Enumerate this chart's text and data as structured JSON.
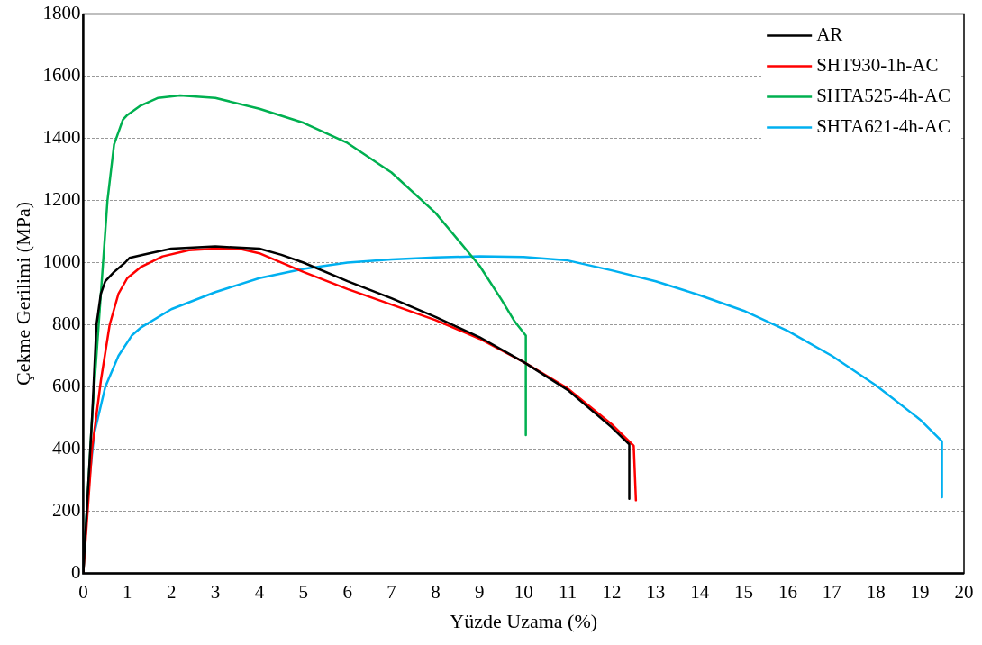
{
  "chart_data": {
    "type": "line",
    "xlabel": "Yüzde Uzama (%)",
    "ylabel": "Çekme Gerilimi (MPa)",
    "xlim": [
      0,
      20
    ],
    "xticks": [
      0,
      1,
      2,
      3,
      4,
      5,
      6,
      7,
      8,
      9,
      10,
      11,
      12,
      13,
      14,
      15,
      16,
      17,
      18,
      19,
      20
    ],
    "ylim": [
      0,
      1800
    ],
    "yticks": [
      0,
      200,
      400,
      600,
      800,
      1000,
      1200,
      1400,
      1600,
      1800
    ],
    "grid": "y",
    "legend": "top right",
    "marker": "none",
    "line_style": "solid",
    "series": [
      {
        "name": "AR",
        "color": "#000000",
        "x": [
          0,
          0.2,
          0.3,
          0.4,
          0.5,
          0.7,
          0.95,
          1.05,
          1.5,
          2,
          3,
          4,
          4.5,
          5,
          6,
          7,
          8,
          9,
          10,
          11,
          11.5,
          12,
          12.4,
          12.4
        ],
        "values": [
          0,
          500,
          800,
          900,
          940,
          970,
          1000,
          1015,
          1030,
          1045,
          1052,
          1045,
          1025,
          1000,
          940,
          885,
          825,
          760,
          680,
          590,
          530,
          470,
          415,
          240
        ]
      },
      {
        "name": "SHT930-1h-AC",
        "color": "#ff0000",
        "x": [
          0,
          0.2,
          0.4,
          0.6,
          0.8,
          1,
          1.3,
          1.8,
          2.4,
          3,
          3.6,
          4,
          5,
          6,
          7,
          8,
          9,
          10,
          11,
          12,
          12.5,
          12.55
        ],
        "values": [
          0,
          400,
          620,
          800,
          900,
          950,
          985,
          1020,
          1040,
          1045,
          1043,
          1030,
          970,
          915,
          865,
          815,
          755,
          680,
          595,
          480,
          410,
          235
        ]
      },
      {
        "name": "SHTA525-4h-AC",
        "color": "#00b050",
        "x": [
          0,
          0.2,
          0.4,
          0.55,
          0.7,
          0.9,
          1,
          1.3,
          1.7,
          2.2,
          3,
          4,
          5,
          6,
          7,
          8,
          9,
          9.5,
          9.8,
          10.05,
          10.05
        ],
        "values": [
          0,
          500,
          900,
          1200,
          1380,
          1460,
          1475,
          1505,
          1530,
          1538,
          1530,
          1495,
          1450,
          1385,
          1290,
          1160,
          990,
          880,
          810,
          765,
          445
        ]
      },
      {
        "name": "SHTA621-4h-AC",
        "color": "#00b0f0",
        "x": [
          0,
          0.1,
          0.25,
          0.5,
          0.8,
          1.1,
          1.3,
          2,
          3,
          4,
          5,
          6,
          7,
          8,
          9,
          10,
          11,
          12,
          13,
          14,
          15,
          16,
          17,
          18,
          19,
          19.5,
          19.5
        ],
        "values": [
          0,
          250,
          450,
          600,
          700,
          765,
          790,
          850,
          905,
          950,
          980,
          1000,
          1010,
          1017,
          1020,
          1018,
          1007,
          975,
          940,
          895,
          845,
          780,
          700,
          605,
          495,
          425,
          245
        ]
      }
    ]
  }
}
